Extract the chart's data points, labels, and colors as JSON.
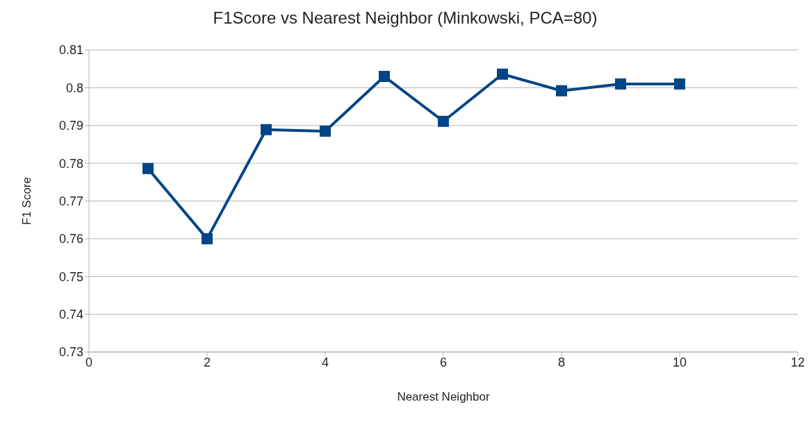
{
  "chart_data": {
    "type": "line",
    "title": "F1Score vs Nearest Neighbor (Minkowski, PCA=80)",
    "xlabel": "Nearest Neighbor",
    "ylabel": "F1 Score",
    "x": [
      1,
      2,
      3,
      4,
      5,
      6,
      7,
      8,
      9,
      10
    ],
    "series": [
      {
        "color": "#004586",
        "values": [
          0.7786,
          0.76,
          0.7889,
          0.7885,
          0.803,
          0.7911,
          0.8036,
          0.7992,
          0.801,
          0.801
        ]
      }
    ],
    "xlim": [
      0,
      12
    ],
    "xticks": [
      0,
      2,
      4,
      6,
      8,
      10,
      12
    ],
    "ylim": [
      0.73,
      0.81
    ],
    "yticks": [
      0.73,
      0.74,
      0.75,
      0.76,
      0.77,
      0.78,
      0.79,
      0.8,
      0.81
    ],
    "grid": "y",
    "marker": "square",
    "line_style": "solid"
  }
}
